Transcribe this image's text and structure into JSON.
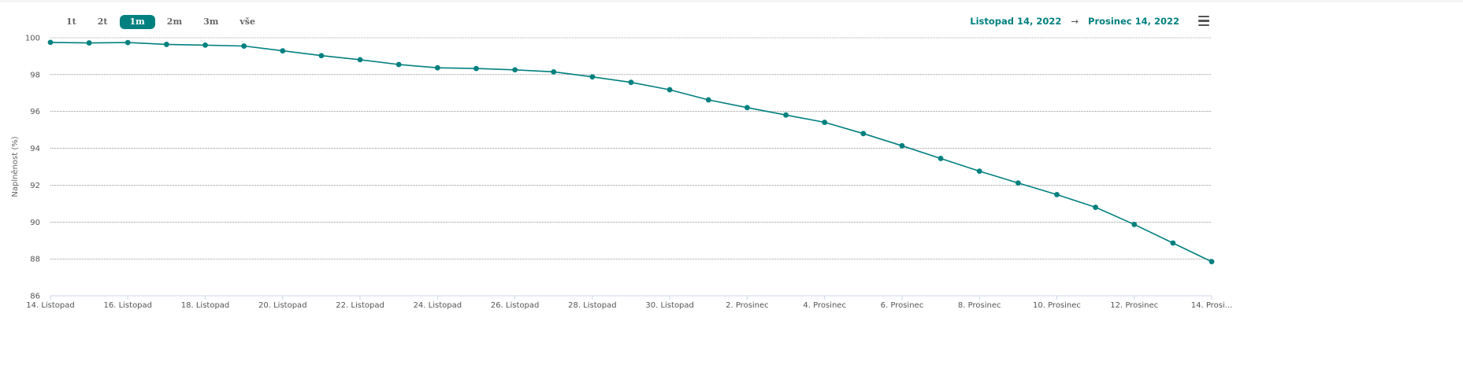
{
  "range_selector": {
    "buttons": [
      {
        "label": "1t",
        "selected": false
      },
      {
        "label": "2t",
        "selected": false
      },
      {
        "label": "1m",
        "selected": true
      },
      {
        "label": "2m",
        "selected": false
      },
      {
        "label": "3m",
        "selected": false
      },
      {
        "label": "vše",
        "selected": false
      }
    ]
  },
  "date_range": {
    "from": "Listopad 14, 2022",
    "arrow": "→",
    "to": "Prosinec 14, 2022"
  },
  "menu": {
    "icon": "hamburger-menu-icon"
  },
  "chart_data": {
    "type": "line",
    "title": "",
    "xlabel": "",
    "ylabel": "Naplněnost (%)",
    "ylim": [
      86,
      100
    ],
    "yticks": [
      86,
      88,
      90,
      92,
      94,
      96,
      98,
      100
    ],
    "grid": true,
    "line_color": "#00807f",
    "x_tick_labels": [
      "14. Listopad",
      "16. Listopad",
      "18. Listopad",
      "20. Listopad",
      "22. Listopad",
      "24. Listopad",
      "26. Listopad",
      "28. Listopad",
      "30. Listopad",
      "2. Prosinec",
      "4. Prosinec",
      "6. Prosinec",
      "8. Prosinec",
      "10. Prosinec",
      "12. Prosinec",
      "14. Prosi..."
    ],
    "series": [
      {
        "x": [
          "2022-11-14",
          "2022-11-15",
          "2022-11-16",
          "2022-11-17",
          "2022-11-18",
          "2022-11-19",
          "2022-11-20",
          "2022-11-21",
          "2022-11-22",
          "2022-11-23",
          "2022-11-24",
          "2022-11-25",
          "2022-11-26",
          "2022-11-27",
          "2022-11-28",
          "2022-11-29",
          "2022-11-30",
          "2022-12-01",
          "2022-12-02",
          "2022-12-03",
          "2022-12-04",
          "2022-12-05",
          "2022-12-06",
          "2022-12-07",
          "2022-12-08",
          "2022-12-09",
          "2022-12-10",
          "2022-12-11",
          "2022-12-12",
          "2022-12-13",
          "2022-12-14"
        ],
        "values": [
          99.75,
          99.72,
          99.74,
          99.64,
          99.6,
          99.55,
          99.29,
          99.03,
          98.81,
          98.55,
          98.37,
          98.33,
          98.26,
          98.15,
          97.88,
          97.58,
          97.18,
          96.63,
          96.21,
          95.81,
          95.41,
          94.8,
          94.14,
          93.45,
          92.76,
          92.12,
          91.49,
          90.8,
          89.87,
          88.86,
          87.85
        ]
      }
    ]
  }
}
